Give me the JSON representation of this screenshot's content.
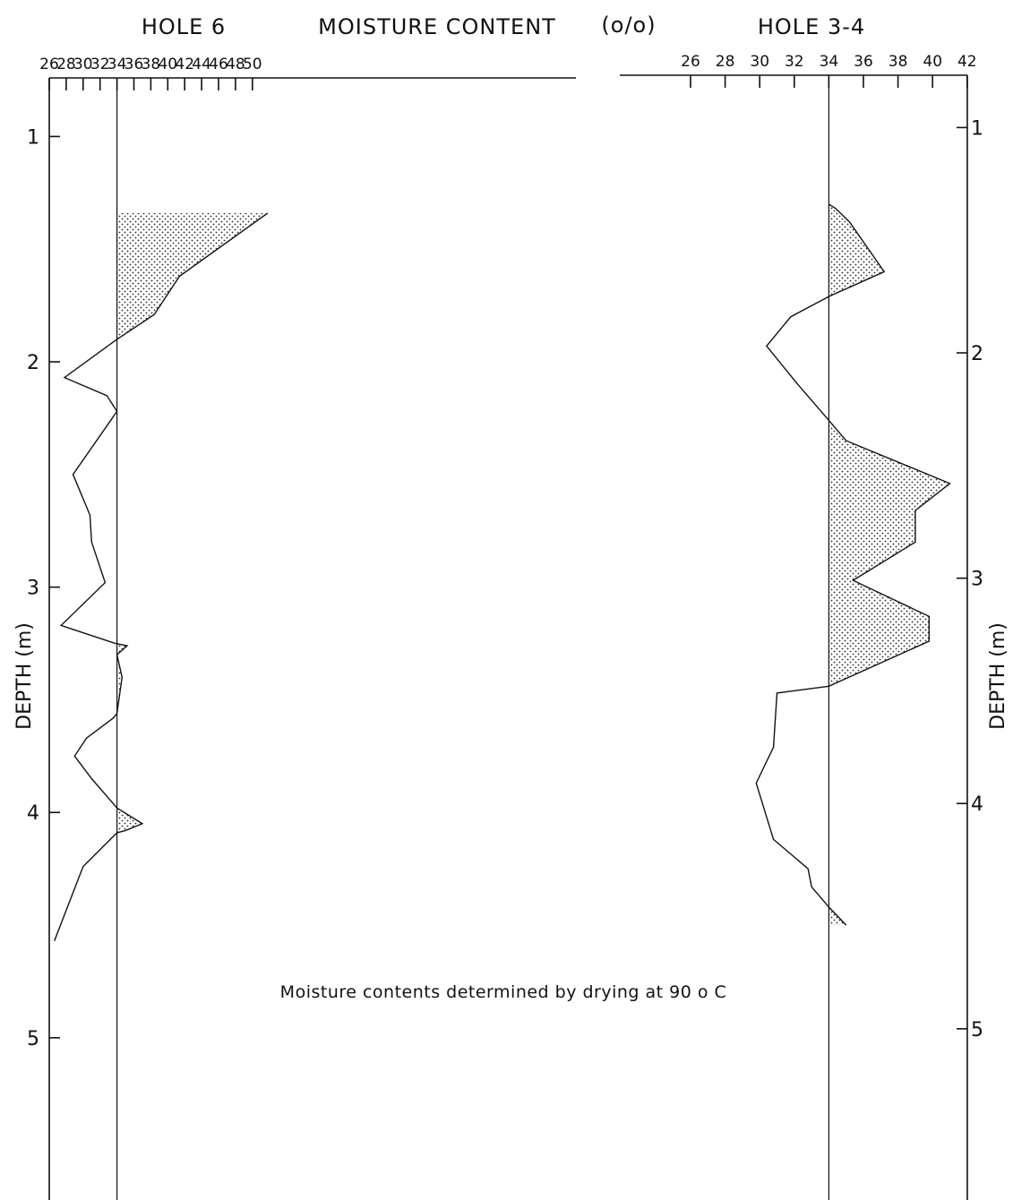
{
  "chart_data": {
    "type": "line",
    "title": "MOISTURE CONTENT",
    "title_unit": "(o/o)",
    "ylabel": "DEPTH (m)",
    "note": "Moisture contents determined by drying at 90 o C",
    "y_ticks": [
      1,
      2,
      3,
      4,
      5
    ],
    "ylim": [
      0.74,
      5.72
    ],
    "y_reversed": true,
    "panels": [
      {
        "name": "HOLE 6",
        "x_ticks": [
          26,
          28,
          30,
          32,
          34,
          36,
          38,
          40,
          42,
          44,
          46,
          48,
          50
        ],
        "xlim": [
          26,
          52
        ],
        "reference_value": 34,
        "series": [
          {
            "x": [
              51.8,
              41.4,
              38.4,
              34.0,
              27.8,
              32.8,
              34.0,
              28.8,
              30.8,
              31.0,
              32.6,
              27.4,
              33.8,
              35.2,
              34.0,
              34.6,
              34.0,
              33.6,
              30.4,
              29.0,
              31.0,
              34.0,
              37.0,
              35.0,
              34.0,
              30.0,
              26.6
            ],
            "y": [
              1.34,
              1.62,
              1.79,
              1.9,
              2.07,
              2.15,
              2.22,
              2.5,
              2.68,
              2.8,
              2.98,
              3.17,
              3.25,
              3.26,
              3.3,
              3.4,
              3.56,
              3.58,
              3.67,
              3.75,
              3.85,
              3.98,
              4.05,
              4.08,
              4.09,
              4.24,
              4.57
            ]
          }
        ]
      },
      {
        "name": "HOLE 3-4",
        "x_ticks": [
          26,
          28,
          30,
          32,
          34,
          36,
          38,
          40,
          42
        ],
        "xlim": [
          26,
          42
        ],
        "reference_value": 34,
        "series": [
          {
            "x": [
              34.0,
              34.4,
              35.2,
              37.2,
              34.0,
              31.8,
              30.4,
              32.2,
              34.0,
              35.0,
              41.0,
              39.0,
              39.0,
              35.4,
              39.8,
              39.8,
              34.0,
              31.0,
              30.8,
              29.8,
              30.8,
              32.8,
              33.0,
              34.0,
              35.0
            ],
            "y": [
              1.3,
              1.32,
              1.38,
              1.6,
              1.71,
              1.8,
              1.93,
              2.1,
              2.26,
              2.35,
              2.54,
              2.66,
              2.8,
              2.97,
              3.13,
              3.24,
              3.44,
              3.47,
              3.71,
              3.87,
              4.12,
              4.25,
              4.33,
              4.42,
              4.5
            ]
          }
        ]
      }
    ]
  }
}
